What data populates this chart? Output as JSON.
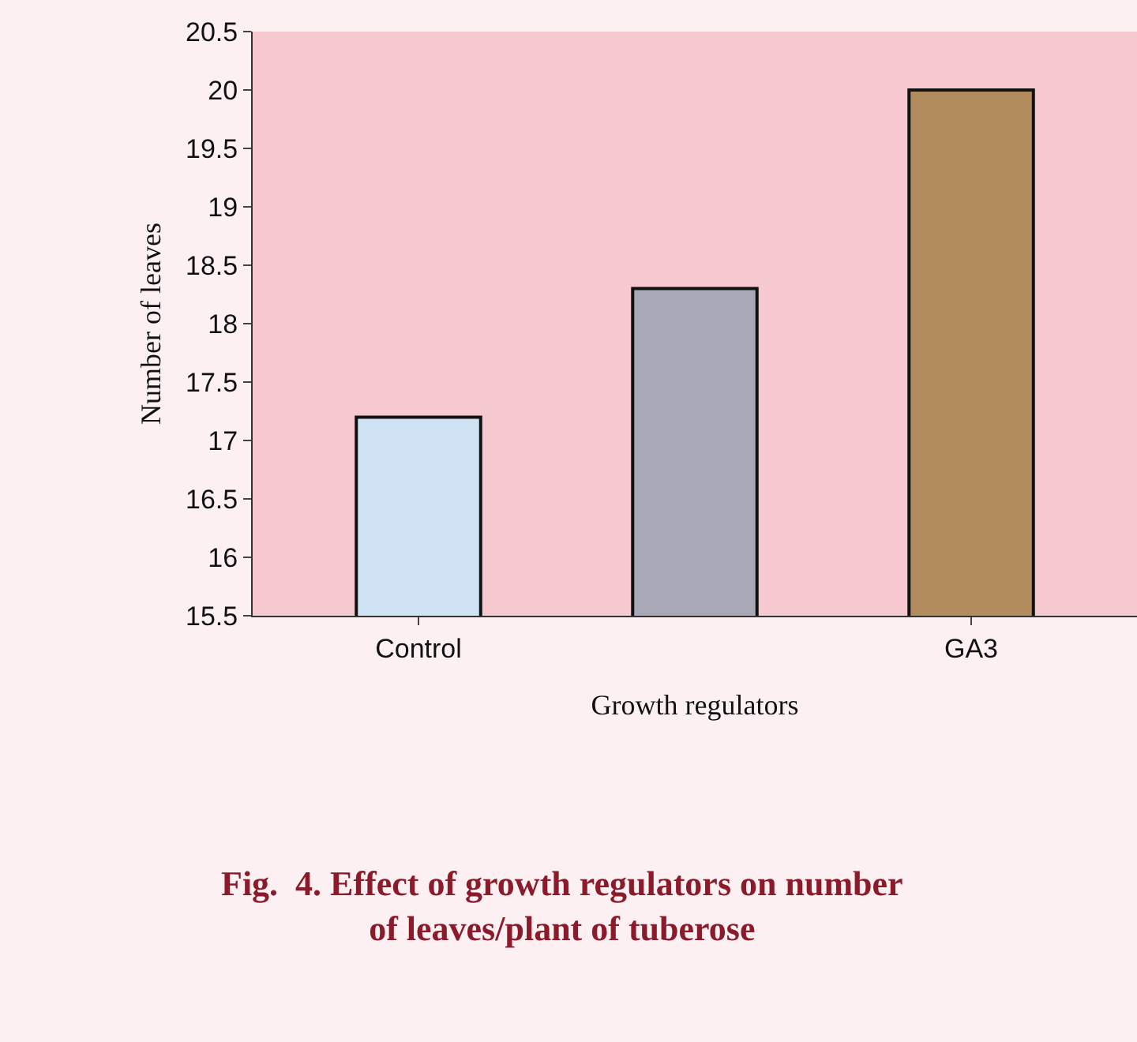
{
  "chart_data": {
    "type": "bar",
    "categories": [
      "Control",
      null,
      "GA3"
    ],
    "values": [
      17.2,
      18.3,
      20.0
    ],
    "colors": [
      "#cfe3f5",
      "#a9a8b6",
      "#b38c5e"
    ],
    "xlabel": "Growth regulators",
    "ylabel": "Number of leaves",
    "ylim": [
      15.5,
      20.5
    ],
    "yticks": [
      15.5,
      16,
      16.5,
      17,
      17.5,
      18,
      18.5,
      19,
      19.5,
      20,
      20.5
    ],
    "grid": false,
    "legend": false,
    "annotations": [
      "Fig.  4. Effect of growth regulators on number of leaves/plant of tuberose"
    ]
  }
}
